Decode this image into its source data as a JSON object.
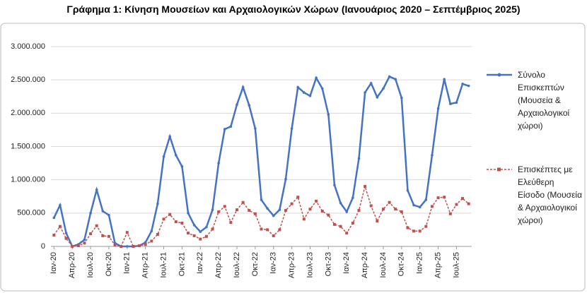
{
  "chart_data": {
    "type": "line",
    "title": "Γράφημα 1: Κίνηση Μουσείων και Αρχαιολογικών Χώρων (Ιανουάριος 2020 – Σεπτέμβριος 2025)",
    "categories": [
      "Ιαν-20",
      null,
      null,
      "Απρ-20",
      null,
      null,
      "Ιουλ-20",
      null,
      null,
      "Οκτ-20",
      null,
      null,
      "Ιαν-21",
      null,
      null,
      "Απρ-21",
      null,
      null,
      "Ιουλ-21",
      null,
      null,
      "Οκτ-21",
      null,
      null,
      "Ιαν-22",
      null,
      null,
      "Απρ-22",
      null,
      null,
      "Ιουλ-22",
      null,
      null,
      "Οκτ-22",
      null,
      null,
      "Ιαν-23",
      null,
      null,
      "Απρ-23",
      null,
      null,
      "Ιουλ-23",
      null,
      null,
      "Οκτ-23",
      null,
      null,
      "Ιαν-24",
      null,
      null,
      "Απρ-24",
      null,
      null,
      "Ιουλ-24",
      null,
      null,
      "Οκτ-24",
      null,
      null,
      "Ιαν-25",
      null,
      null,
      "Απρ-25",
      null,
      null,
      "Ιουλ-25",
      null,
      null
    ],
    "series": [
      {
        "name": "Σύνολο Επισκεπτών (Μουσεία & Αρχαιολογικοί χώροι)",
        "color": "#4472c4",
        "marker": "diamond",
        "dashed": false,
        "values": [
          430000,
          620000,
          200000,
          0,
          30000,
          100000,
          500000,
          850000,
          530000,
          470000,
          50000,
          0,
          0,
          0,
          10000,
          60000,
          230000,
          640000,
          1350000,
          1650000,
          1370000,
          1200000,
          500000,
          320000,
          220000,
          290000,
          550000,
          1250000,
          1760000,
          1800000,
          2130000,
          2390000,
          2120000,
          1770000,
          700000,
          570000,
          460000,
          550000,
          1010000,
          1770000,
          2390000,
          2310000,
          2260000,
          2530000,
          2370000,
          1980000,
          920000,
          650000,
          520000,
          730000,
          1320000,
          2310000,
          2450000,
          2240000,
          2370000,
          2550000,
          2510000,
          2230000,
          840000,
          620000,
          590000,
          700000,
          1370000,
          2070000,
          2510000,
          2140000,
          2160000,
          2440000,
          2410000
        ]
      },
      {
        "name": "Επισκέπτες με Ελεύθερη Είσοδο (Μουσεία & Αρχαιολογικοί χώροι)",
        "color": "#c0504d",
        "marker": "square",
        "dashed": true,
        "values": [
          170000,
          300000,
          120000,
          0,
          10000,
          50000,
          190000,
          310000,
          160000,
          150000,
          20000,
          0,
          210000,
          0,
          10000,
          30000,
          80000,
          180000,
          410000,
          480000,
          370000,
          350000,
          200000,
          160000,
          110000,
          150000,
          260000,
          520000,
          600000,
          360000,
          550000,
          660000,
          540000,
          490000,
          260000,
          250000,
          160000,
          250000,
          540000,
          640000,
          740000,
          410000,
          560000,
          680000,
          530000,
          470000,
          330000,
          300000,
          200000,
          350000,
          540000,
          900000,
          610000,
          380000,
          560000,
          660000,
          560000,
          520000,
          280000,
          230000,
          230000,
          300000,
          600000,
          730000,
          740000,
          490000,
          630000,
          720000,
          640000
        ]
      }
    ],
    "ylim": [
      0,
      3000000
    ],
    "yticks": [
      0,
      {
        "value": 500000,
        "label": "500.000"
      },
      {
        "value": 1000000,
        "label": "1.000.000"
      },
      {
        "value": 1500000,
        "label": "1.500.000"
      },
      {
        "value": 2000000,
        "label": "2.000.000"
      },
      {
        "value": 2500000,
        "label": "2.500.000"
      },
      {
        "value": 3000000,
        "label": "3.000.000"
      }
    ],
    "grid": true,
    "legend": "right"
  }
}
